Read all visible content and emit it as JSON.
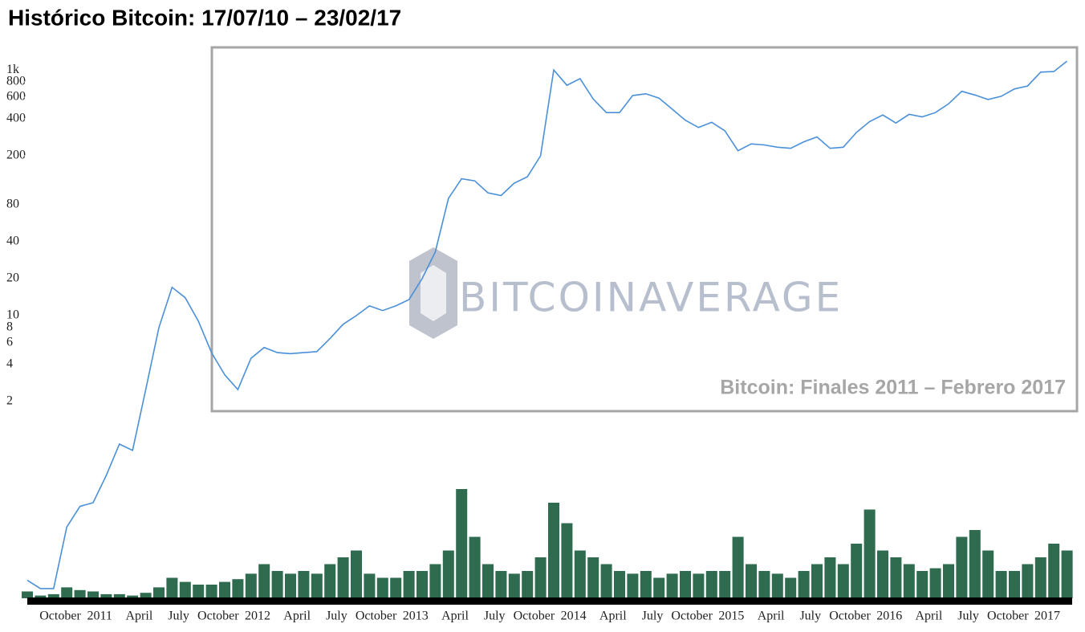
{
  "chart_data": {
    "type": "line",
    "title": "Histórico Bitcoin:  17/07/10 – 23/02/17",
    "annotation": "Bitcoin:  Finales 2011 – Febrero 2017",
    "watermark": "BITCOINAVERAGE",
    "log_scale": true,
    "grid": false,
    "ylim": [
      0.05,
      1200
    ],
    "yticks": [
      {
        "value": 1000,
        "label": "1k"
      },
      800,
      600,
      400,
      200,
      80,
      40,
      20,
      10,
      8,
      6,
      4,
      2
    ],
    "y2lim": [
      0,
      100
    ],
    "x": [
      "2010-07",
      "2010-08",
      "2010-09",
      "2010-10",
      "2010-11",
      "2010-12",
      "2011-01",
      "2011-02",
      "2011-03",
      "2011-04",
      "2011-05",
      "2011-06",
      "2011-07",
      "2011-08",
      "2011-09",
      "2011-10",
      "2011-11",
      "2011-12",
      "2012-01",
      "2012-02",
      "2012-03",
      "2012-04",
      "2012-05",
      "2012-06",
      "2012-07",
      "2012-08",
      "2012-09",
      "2012-10",
      "2012-11",
      "2012-12",
      "2013-01",
      "2013-02",
      "2013-03",
      "2013-04",
      "2013-05",
      "2013-06",
      "2013-07",
      "2013-08",
      "2013-09",
      "2013-10",
      "2013-11",
      "2013-12",
      "2014-01",
      "2014-02",
      "2014-03",
      "2014-04",
      "2014-05",
      "2014-06",
      "2014-07",
      "2014-08",
      "2014-09",
      "2014-10",
      "2014-11",
      "2014-12",
      "2015-01",
      "2015-02",
      "2015-03",
      "2015-04",
      "2015-05",
      "2015-06",
      "2015-07",
      "2015-08",
      "2015-09",
      "2015-10",
      "2015-11",
      "2015-12",
      "2016-01",
      "2016-02",
      "2016-03",
      "2016-04",
      "2016-05",
      "2016-06",
      "2016-07",
      "2016-08",
      "2016-09",
      "2016-10",
      "2016-11",
      "2016-12",
      "2017-01",
      "2017-02"
    ],
    "xticks": [
      {
        "value": "2010-10",
        "label": "October"
      },
      {
        "value": "2011-01",
        "label": "2011"
      },
      {
        "value": "2011-04",
        "label": "April"
      },
      {
        "value": "2011-07",
        "label": "July"
      },
      {
        "value": "2011-10",
        "label": "October"
      },
      {
        "value": "2012-01",
        "label": "2012"
      },
      {
        "value": "2012-04",
        "label": "April"
      },
      {
        "value": "2012-07",
        "label": "July"
      },
      {
        "value": "2012-10",
        "label": "October"
      },
      {
        "value": "2013-01",
        "label": "2013"
      },
      {
        "value": "2013-04",
        "label": "April"
      },
      {
        "value": "2013-07",
        "label": "July"
      },
      {
        "value": "2013-10",
        "label": "October"
      },
      {
        "value": "2014-01",
        "label": "2014"
      },
      {
        "value": "2014-04",
        "label": "April"
      },
      {
        "value": "2014-07",
        "label": "July"
      },
      {
        "value": "2014-10",
        "label": "October"
      },
      {
        "value": "2015-01",
        "label": "2015"
      },
      {
        "value": "2015-04",
        "label": "April"
      },
      {
        "value": "2015-07",
        "label": "July"
      },
      {
        "value": "2015-10",
        "label": "October"
      },
      {
        "value": "2016-01",
        "label": "2016"
      },
      {
        "value": "2016-04",
        "label": "April"
      },
      {
        "value": "2016-07",
        "label": "July"
      },
      {
        "value": "2016-10",
        "label": "October"
      },
      {
        "value": "2017-01",
        "label": "2017"
      }
    ],
    "series": [
      {
        "color": "#4a90d9",
        "values": [
          0.07,
          0.06,
          0.06,
          0.19,
          0.28,
          0.3,
          0.5,
          0.9,
          0.8,
          2.5,
          8,
          17,
          14,
          9,
          5,
          3.3,
          2.5,
          4.5,
          5.5,
          5,
          4.9,
          5,
          5.1,
          6.5,
          8.5,
          10,
          12,
          11,
          12,
          13.5,
          20,
          33,
          90,
          130,
          125,
          100,
          95,
          120,
          135,
          200,
          1000,
          750,
          850,
          580,
          450,
          450,
          620,
          640,
          590,
          480,
          390,
          340,
          375,
          320,
          220,
          250,
          245,
          235,
          230,
          260,
          285,
          230,
          235,
          310,
          380,
          430,
          370,
          435,
          415,
          450,
          530,
          670,
          625,
          575,
          610,
          700,
          740,
          960,
          970,
          1180
        ]
      },
      {
        "color": "#2e6b4f",
        "axis": "y2",
        "type": "bar",
        "values": [
          5,
          2,
          3,
          8,
          6,
          5,
          3,
          3,
          2,
          4,
          8,
          15,
          12,
          10,
          10,
          12,
          14,
          18,
          25,
          20,
          18,
          20,
          18,
          25,
          30,
          35,
          18,
          15,
          15,
          20,
          20,
          25,
          35,
          80,
          45,
          25,
          20,
          18,
          20,
          30,
          70,
          55,
          35,
          30,
          25,
          20,
          18,
          20,
          15,
          18,
          20,
          18,
          20,
          20,
          45,
          25,
          20,
          18,
          15,
          20,
          25,
          30,
          25,
          40,
          65,
          35,
          30,
          25,
          20,
          22,
          25,
          45,
          50,
          35,
          20,
          20,
          25,
          30,
          40,
          35
        ]
      }
    ]
  }
}
